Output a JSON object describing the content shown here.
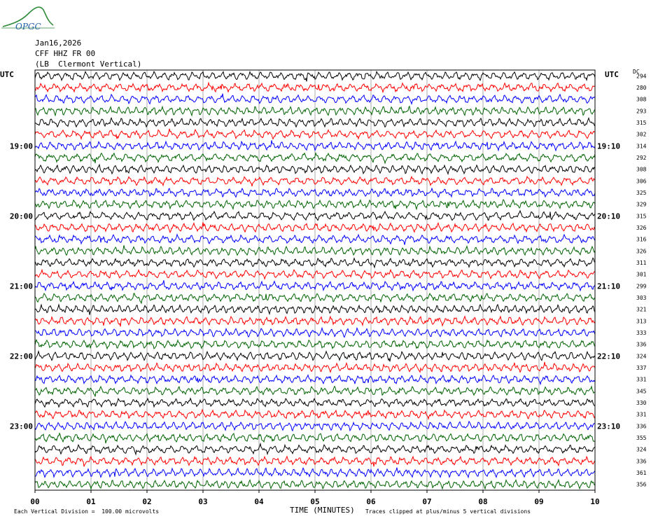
{
  "header": {
    "logo_text": "OPGC",
    "date": "Jan16,2026",
    "station": "CFF HHZ FR 00",
    "location": "(LB  Clermont Vertical)"
  },
  "axis": {
    "left_label": "UTC",
    "right_label": "UTC",
    "right_col_label": "DC",
    "xlabel": "TIME (MINUTES)"
  },
  "footer": {
    "scale": "Each Vertical Division =  100.00 microvolts",
    "clip": "Traces clipped at plus/minus 5 vertical divisions"
  },
  "chart_data": {
    "type": "line",
    "title": "CFF HHZ FR 00",
    "xlabel": "TIME (MINUTES)",
    "xlim": [
      0,
      10
    ],
    "x_ticks": [
      "00",
      "01",
      "02",
      "03",
      "04",
      "05",
      "06",
      "07",
      "08",
      "09",
      "10"
    ],
    "left_hour_labels": [
      "19:00",
      "20:00",
      "21:00",
      "22:00",
      "23:00"
    ],
    "right_hour_labels": [
      "19:10",
      "20:10",
      "21:10",
      "22:10",
      "23:10"
    ],
    "trace_colors": [
      "#000000",
      "#ff0000",
      "#0000ff",
      "#006400"
    ],
    "dc_offsets": [
      294,
      280,
      308,
      293,
      315,
      302,
      314,
      292,
      308,
      306,
      325,
      329,
      315,
      326,
      316,
      326,
      311,
      301,
      299,
      303,
      321,
      313,
      333,
      336,
      324,
      337,
      331,
      345,
      330,
      331,
      336,
      355,
      324,
      336,
      361,
      356
    ],
    "grid": true
  }
}
